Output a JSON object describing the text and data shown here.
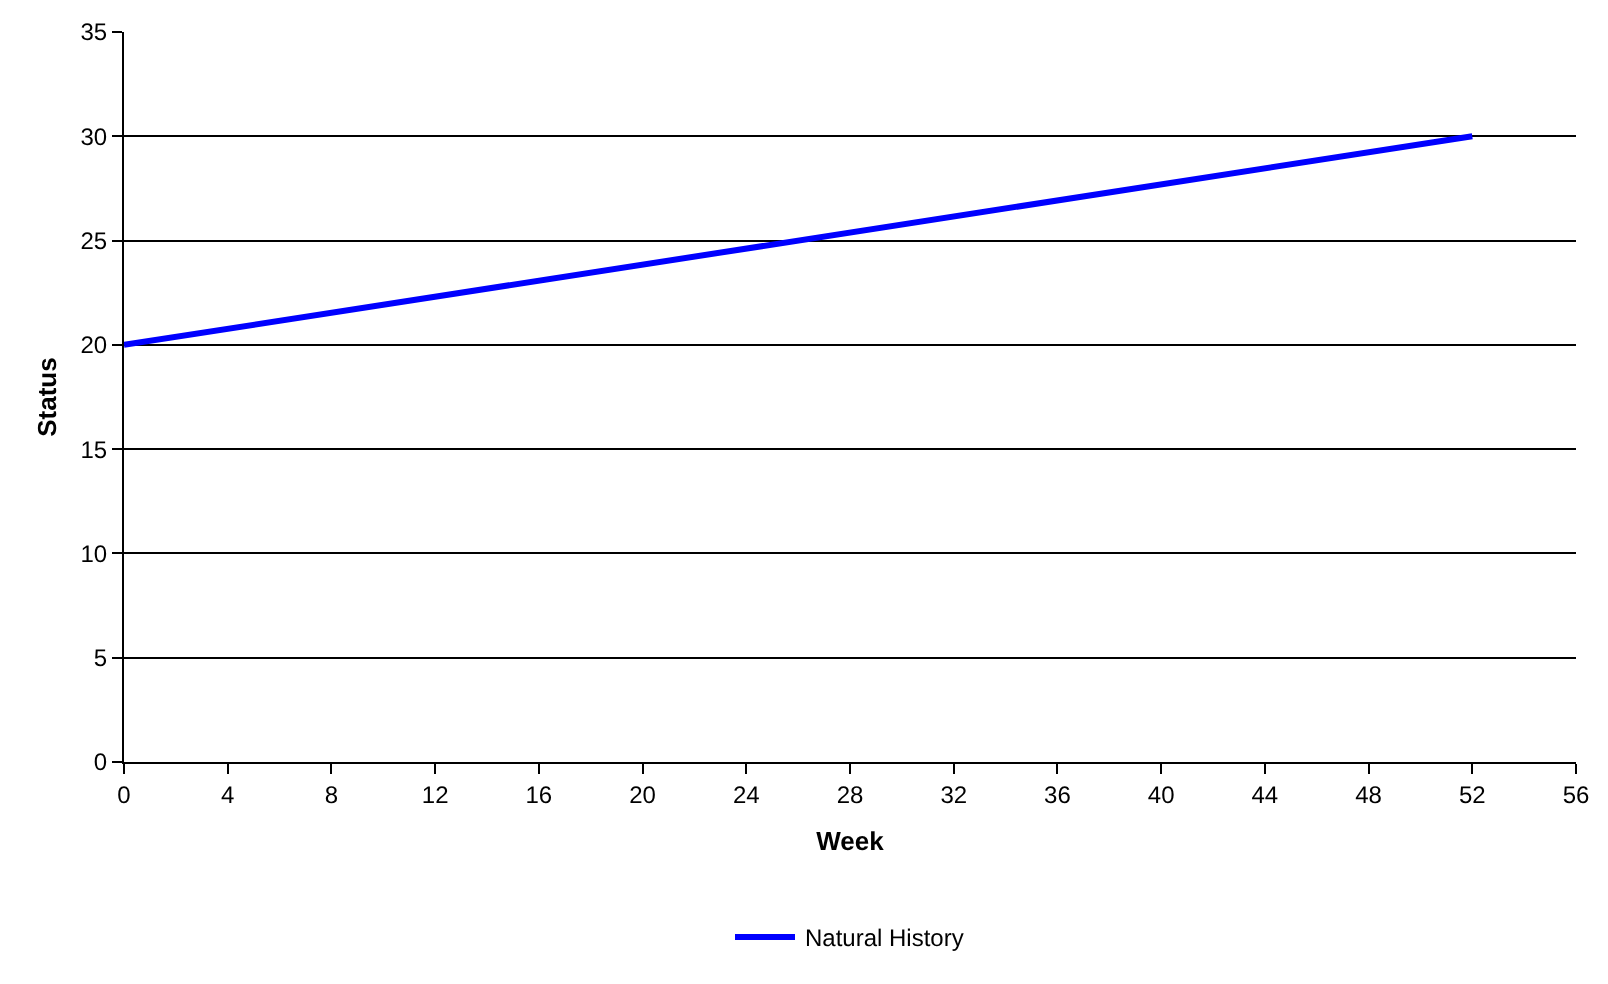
{
  "chart_data": {
    "type": "line",
    "xlabel": "Week",
    "ylabel": "Status",
    "x": [
      0,
      52
    ],
    "series": [
      {
        "name": "Natural History",
        "color": "#0000ff",
        "values": [
          20,
          30
        ]
      }
    ],
    "xlim": [
      0,
      56
    ],
    "xticks": [
      0,
      4,
      8,
      12,
      16,
      20,
      24,
      28,
      32,
      36,
      40,
      44,
      48,
      52,
      56
    ],
    "ylim": [
      0,
      35
    ],
    "yticks": [
      0,
      5,
      10,
      15,
      20,
      25,
      30,
      35
    ],
    "grid": "y",
    "legend": "bottom",
    "marker": "none",
    "line_style": "solid"
  }
}
